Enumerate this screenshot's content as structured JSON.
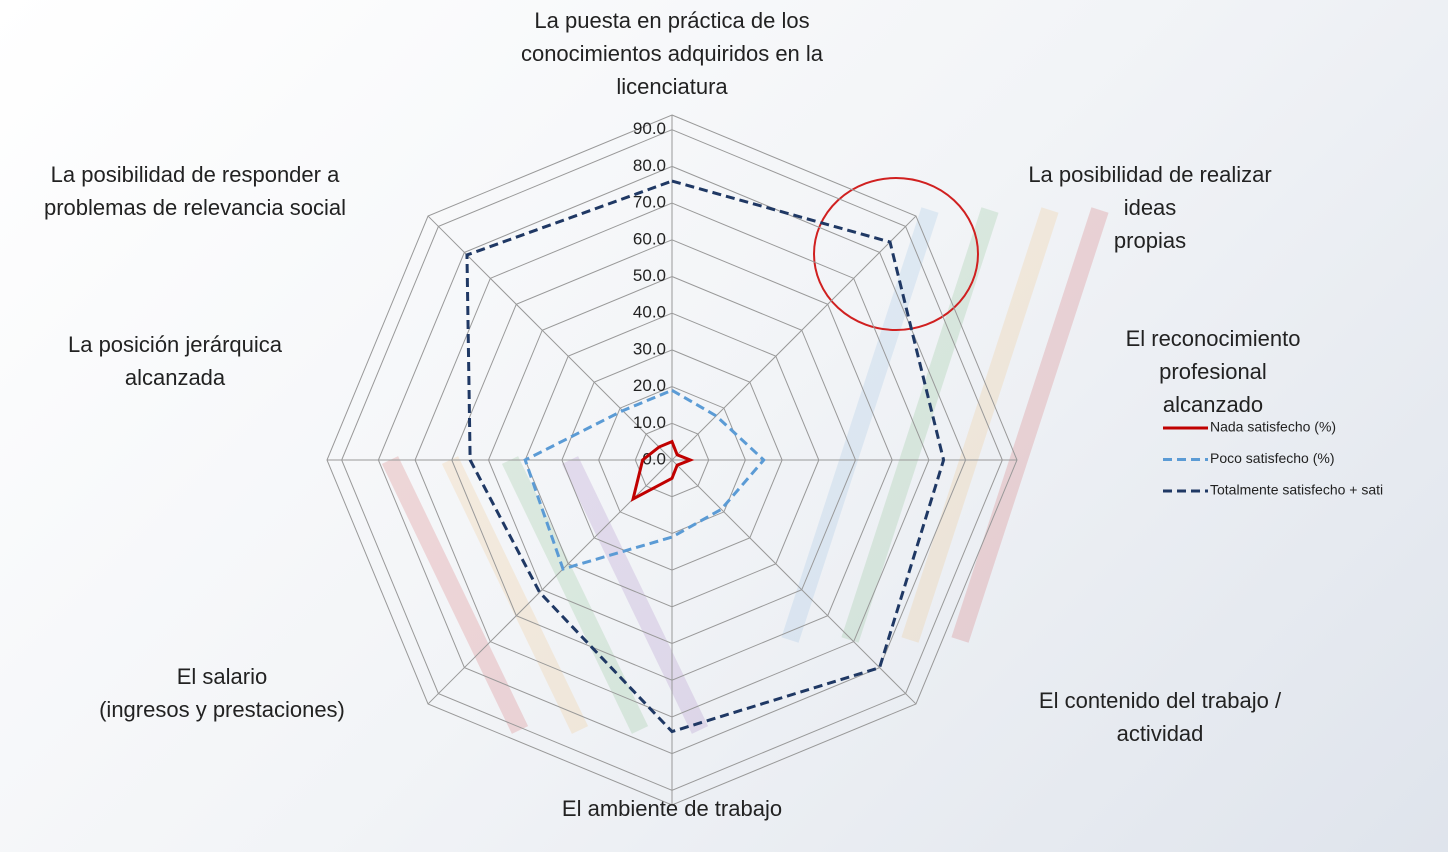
{
  "chart_data": {
    "type": "radar",
    "categories": [
      "La puesta en práctica de los\nconocimientos adquiridos en la\nlicenciatura",
      "La posibilidad de realizar ideas\npropias",
      "El reconocimiento profesional\nalcanzado",
      "El contenido del trabajo / actividad",
      "El ambiente de trabajo",
      "El salario\n(ingresos y prestaciones)",
      "La posición jerárquica\nalcanzada",
      "La posibilidad de responder a\nproblemas de relevancia social"
    ],
    "series": [
      {
        "name": "Nada satisfecho (%)",
        "color": "#c00000",
        "dash": "solid",
        "values": [
          5,
          2,
          5,
          2,
          5,
          15,
          8,
          5
        ]
      },
      {
        "name": "Poco satisfecho (%)",
        "color": "#5b9bd5",
        "dash": "dashed",
        "values": [
          19,
          17,
          25,
          19,
          21,
          42,
          40,
          19
        ]
      },
      {
        "name": "Totalmente satisfecho + sati",
        "color": "#1f3864",
        "dash": "dashed",
        "values": [
          76,
          84,
          74,
          80,
          74,
          51,
          55,
          79
        ]
      }
    ],
    "ylim": [
      0,
      94
    ],
    "yticks": [
      {
        "value": 0,
        "label": "0.0"
      },
      {
        "value": 10,
        "label": "10.0"
      },
      {
        "value": 20,
        "label": "20.0"
      },
      {
        "value": 30,
        "label": "30.0"
      },
      {
        "value": 40,
        "label": "40.0"
      },
      {
        "value": 50,
        "label": "50.0"
      },
      {
        "value": 60,
        "label": "60.0"
      },
      {
        "value": 70,
        "label": "70.0"
      },
      {
        "value": 80,
        "label": "80.0"
      },
      {
        "value": 90,
        "label": "90.0"
      }
    ],
    "grid": true
  }
}
